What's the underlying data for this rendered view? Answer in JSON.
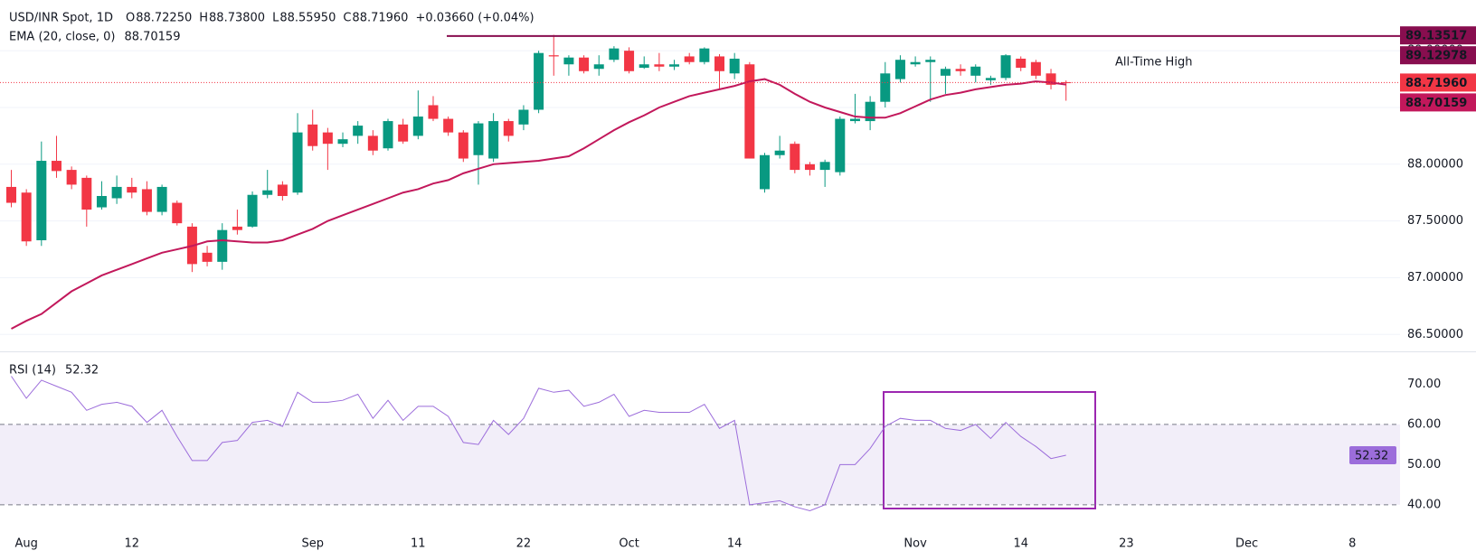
{
  "chart_data": [
    {
      "type": "candlestick",
      "title": "USD/INR Spot, 1D",
      "readout": [
        {
          "key": "O",
          "text": "88.72250"
        },
        {
          "key": "H",
          "text": "88.73800"
        },
        {
          "key": "L",
          "text": "88.55950"
        },
        {
          "key": "C",
          "text": "88.71960"
        }
      ],
      "change": "+0.03660 (+0.04%)",
      "readout_color": "#f23645",
      "categories": [
        null,
        "Aug",
        null,
        null,
        null,
        null,
        null,
        null,
        "12",
        null,
        null,
        null,
        null,
        null,
        null,
        null,
        null,
        null,
        null,
        null,
        "Sep",
        null,
        null,
        null,
        null,
        null,
        null,
        "11",
        null,
        null,
        null,
        null,
        null,
        null,
        "22",
        null,
        null,
        null,
        null,
        null,
        null,
        "Oct",
        null,
        null,
        null,
        null,
        null,
        null,
        "14",
        null,
        null,
        null,
        null,
        null,
        null,
        null,
        null,
        null,
        null,
        null,
        "Nov",
        null,
        null,
        null,
        null,
        null,
        null,
        "14",
        null,
        null,
        null,
        null,
        null,
        null,
        "23",
        null,
        null,
        null,
        null,
        null,
        null,
        null,
        "Dec",
        null,
        null,
        null,
        null,
        null,
        null,
        "8",
        null,
        null,
        null
      ],
      "open": [
        87.8,
        87.75,
        87.33,
        88.03,
        87.95,
        87.88,
        87.62,
        87.7,
        87.8,
        87.78,
        87.58,
        87.66,
        87.45,
        87.22,
        87.14,
        87.45,
        87.45,
        87.73,
        87.82,
        87.75,
        88.35,
        88.28,
        88.18,
        88.25,
        88.25,
        88.14,
        88.35,
        88.25,
        88.52,
        88.4,
        88.28,
        88.08,
        88.05,
        88.38,
        88.35,
        88.48,
        88.96,
        88.88,
        88.94,
        88.84,
        88.92,
        89.0,
        88.85,
        88.88,
        88.86,
        88.95,
        88.9,
        88.95,
        88.8,
        88.88,
        87.78,
        88.08,
        88.18,
        88.0,
        87.95,
        87.93,
        88.38,
        88.38,
        88.55,
        88.75,
        88.88,
        88.9,
        88.78,
        88.84,
        88.78,
        88.74,
        88.76,
        88.93,
        88.9,
        88.8,
        88.7225,
        null,
        null,
        null,
        null,
        null,
        null,
        null,
        null,
        null,
        null,
        null,
        null,
        null,
        null,
        null,
        null,
        null,
        null,
        null,
        null,
        null,
        null
      ],
      "high": [
        87.95,
        87.78,
        88.2,
        88.25,
        87.98,
        87.9,
        87.85,
        87.9,
        87.88,
        87.85,
        87.82,
        87.68,
        87.48,
        87.28,
        87.48,
        87.6,
        87.76,
        87.95,
        87.85,
        88.45,
        88.48,
        88.32,
        88.28,
        88.38,
        88.3,
        88.4,
        88.4,
        88.65,
        88.6,
        88.42,
        88.3,
        88.38,
        88.45,
        88.4,
        88.52,
        89.0,
        89.14,
        88.96,
        88.96,
        88.96,
        89.04,
        89.03,
        88.95,
        88.98,
        88.92,
        88.98,
        89.03,
        88.97,
        88.98,
        88.9,
        88.1,
        88.25,
        88.2,
        88.02,
        88.04,
        88.42,
        88.62,
        88.6,
        88.9,
        88.96,
        88.95,
        88.95,
        88.86,
        88.88,
        88.88,
        88.78,
        88.97,
        88.95,
        88.92,
        88.84,
        88.738,
        null,
        null,
        null,
        null,
        null,
        null,
        null,
        null,
        null,
        null,
        null,
        null,
        null,
        null,
        null,
        null,
        null,
        null,
        null,
        null,
        null,
        null
      ],
      "low": [
        87.62,
        87.28,
        87.28,
        87.88,
        87.78,
        87.45,
        87.6,
        87.65,
        87.7,
        87.55,
        87.55,
        87.46,
        87.05,
        87.1,
        87.07,
        87.38,
        87.44,
        87.7,
        87.68,
        87.73,
        88.12,
        87.95,
        88.15,
        88.18,
        88.08,
        88.12,
        88.18,
        88.22,
        88.38,
        88.25,
        88.02,
        87.82,
        88.02,
        88.2,
        88.3,
        88.45,
        88.78,
        88.78,
        88.8,
        88.78,
        88.9,
        88.8,
        88.84,
        88.82,
        88.83,
        88.88,
        88.88,
        88.66,
        88.75,
        88.05,
        87.75,
        88.05,
        87.92,
        87.9,
        87.8,
        87.9,
        88.36,
        88.3,
        88.5,
        88.72,
        88.86,
        88.55,
        88.62,
        88.78,
        88.72,
        88.7,
        88.74,
        88.82,
        88.75,
        88.66,
        88.5595,
        null,
        null,
        null,
        null,
        null,
        null,
        null,
        null,
        null,
        null,
        null,
        null,
        null,
        null,
        null,
        null,
        null,
        null,
        null,
        null,
        null,
        null
      ],
      "close": [
        87.66,
        87.32,
        88.03,
        87.94,
        87.82,
        87.6,
        87.72,
        87.8,
        87.75,
        87.58,
        87.8,
        87.48,
        87.12,
        87.14,
        87.42,
        87.42,
        87.73,
        87.77,
        87.72,
        88.28,
        88.16,
        88.18,
        88.22,
        88.34,
        88.12,
        88.38,
        88.2,
        88.42,
        88.4,
        88.28,
        88.05,
        88.36,
        88.38,
        88.25,
        88.48,
        88.98,
        88.95,
        88.94,
        88.82,
        88.88,
        89.02,
        88.82,
        88.88,
        88.86,
        88.88,
        88.9,
        89.02,
        88.82,
        88.93,
        88.05,
        88.08,
        88.12,
        87.95,
        87.95,
        88.02,
        88.4,
        88.4,
        88.55,
        88.8,
        88.92,
        88.9,
        88.92,
        88.84,
        88.82,
        88.86,
        88.76,
        88.96,
        88.85,
        88.78,
        88.7,
        88.7196,
        null,
        null,
        null,
        null,
        null,
        null,
        null,
        null,
        null,
        null,
        null,
        null,
        null,
        null,
        null,
        null,
        null,
        null,
        null,
        null,
        null,
        null
      ],
      "up_color": "#089981",
      "down_color": "#f23645",
      "series": [
        {
          "name": "EMA (20, close, 0)",
          "color": "#c2185b",
          "values": [
            86.55,
            86.62,
            86.68,
            86.78,
            86.88,
            86.95,
            87.02,
            87.07,
            87.12,
            87.17,
            87.22,
            87.25,
            87.28,
            87.32,
            87.33,
            87.32,
            87.31,
            87.31,
            87.33,
            87.38,
            87.43,
            87.5,
            87.55,
            87.6,
            87.65,
            87.7,
            87.75,
            87.78,
            87.83,
            87.86,
            87.92,
            87.96,
            88.0,
            88.01,
            88.02,
            88.03,
            88.05,
            88.07,
            88.14,
            88.22,
            88.3,
            88.37,
            88.43,
            88.5,
            88.55,
            88.6,
            88.63,
            88.66,
            88.69,
            88.73,
            88.75,
            88.7,
            88.62,
            88.55,
            88.5,
            88.46,
            88.42,
            88.41,
            88.41,
            88.45,
            88.51,
            88.57,
            88.61,
            88.63,
            88.66,
            88.68,
            88.7,
            88.71,
            88.73,
            88.72,
            88.70159,
            null,
            null,
            null,
            null,
            null,
            null,
            null,
            null,
            null,
            null,
            null,
            null,
            null,
            null,
            null,
            null,
            null,
            null,
            null,
            null,
            null,
            null
          ]
        }
      ],
      "ylim": [
        86.351,
        89.447
      ],
      "yticks": [
        {
          "value": 86.5,
          "label": "86.50000"
        },
        {
          "value": 87,
          "label": "87.00000"
        },
        {
          "value": 87.5,
          "label": "87.50000"
        },
        {
          "value": 88,
          "label": "88.00000"
        },
        {
          "value": 88.5,
          "label": "88.50000"
        },
        {
          "value": 89,
          "label": "89.00000"
        }
      ],
      "grid": true,
      "price_tags": [
        {
          "value": 89.13517,
          "label": "89.13517",
          "color": "#880e4f",
          "line": "none"
        },
        {
          "value": 89.12978,
          "label": "89.12978",
          "color": "#880e4f",
          "line": "solid"
        },
        {
          "value": 88.7196,
          "label": "88.71960",
          "color": "#f23645",
          "line": "dotted"
        },
        {
          "value": 88.70159,
          "label": "88.70159",
          "color": "#c2185b",
          "line": "none"
        }
      ],
      "annotations": [
        {
          "text": "All-Time High",
          "color": "#2962ff"
        }
      ]
    },
    {
      "type": "line",
      "series": [
        {
          "name": "RSI (14)",
          "color": "#9c6ddb",
          "values": [
            72,
            66.5,
            71,
            69.5,
            68,
            63.5,
            65,
            65.5,
            64.5,
            60.5,
            63.5,
            57,
            51,
            51,
            55.5,
            56,
            60.5,
            61,
            59.5,
            68,
            65.5,
            65.5,
            66,
            67.5,
            61.5,
            66,
            61,
            64.5,
            64.5,
            62,
            55.5,
            55,
            61,
            57.5,
            61.5,
            69,
            68,
            68.5,
            64.5,
            65.5,
            67.5,
            62,
            63.5,
            63,
            63,
            63,
            65,
            59,
            61,
            40,
            40.5,
            41,
            39.5,
            38.5,
            40,
            50,
            50,
            54,
            59.5,
            61.5,
            61,
            61,
            59,
            58.5,
            60,
            56.5,
            60.5,
            57,
            54.5,
            51.5,
            52.32,
            null,
            null,
            null,
            null,
            null,
            null,
            null,
            null,
            null,
            null,
            null,
            null,
            null,
            null,
            null,
            null,
            null,
            null,
            null,
            null,
            null,
            null
          ]
        }
      ],
      "ylim": [
        33.44,
        77.96
      ],
      "yticks": [
        {
          "value": 40,
          "label": "40.00"
        },
        {
          "value": 50,
          "label": "50.00"
        },
        {
          "value": 60,
          "label": "60.00"
        },
        {
          "value": 70,
          "label": "70.00"
        }
      ],
      "grid": false,
      "bands": {
        "lower": 40,
        "upper": 60,
        "color": "#7e57c2"
      }
    }
  ]
}
